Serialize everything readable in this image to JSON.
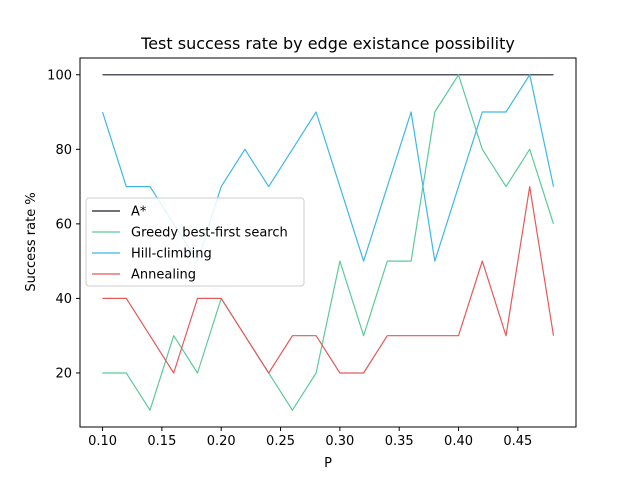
{
  "chart_data": {
    "type": "line",
    "title": "Test success rate by edge existance possibility",
    "xlabel": "P",
    "ylabel": "Success rate %",
    "x": [
      0.1,
      0.12,
      0.14,
      0.16,
      0.18,
      0.2,
      0.22,
      0.24,
      0.26,
      0.28,
      0.3,
      0.32,
      0.34,
      0.36,
      0.38,
      0.4,
      0.42,
      0.44,
      0.46,
      0.48
    ],
    "xlim": [
      0.081,
      0.499
    ],
    "ylim": [
      5.5,
      104.5
    ],
    "xticks": [
      0.1,
      0.15,
      0.2,
      0.25,
      0.3,
      0.35,
      0.4,
      0.45
    ],
    "xtick_labels": [
      "0.10",
      "0.15",
      "0.20",
      "0.25",
      "0.30",
      "0.35",
      "0.40",
      "0.45"
    ],
    "yticks": [
      20,
      40,
      60,
      80,
      100
    ],
    "ytick_labels": [
      "20",
      "40",
      "60",
      "80",
      "100"
    ],
    "grid": false,
    "legend_position": "center-left",
    "series": [
      {
        "name": "A*",
        "color": "#1a1f2b",
        "values": [
          100,
          100,
          100,
          100,
          100,
          100,
          100,
          100,
          100,
          100,
          100,
          100,
          100,
          100,
          100,
          100,
          100,
          100,
          100,
          100
        ]
      },
      {
        "name": "Greedy best-first search",
        "color": "#5ec99a",
        "values": [
          20,
          20,
          10,
          30,
          20,
          40,
          30,
          20,
          10,
          20,
          50,
          30,
          50,
          50,
          90,
          100,
          80,
          70,
          80,
          60
        ]
      },
      {
        "name": "Hill-climbing",
        "color": "#3fb7e6",
        "values": [
          90,
          70,
          70,
          60,
          50,
          70,
          80,
          70,
          80,
          90,
          70,
          50,
          70,
          90,
          50,
          70,
          90,
          90,
          100,
          70
        ]
      },
      {
        "name": "Annealing",
        "color": "#e35a5a",
        "values": [
          40,
          40,
          30,
          20,
          40,
          40,
          30,
          20,
          30,
          30,
          20,
          20,
          30,
          30,
          30,
          30,
          50,
          30,
          70,
          30
        ]
      }
    ]
  }
}
